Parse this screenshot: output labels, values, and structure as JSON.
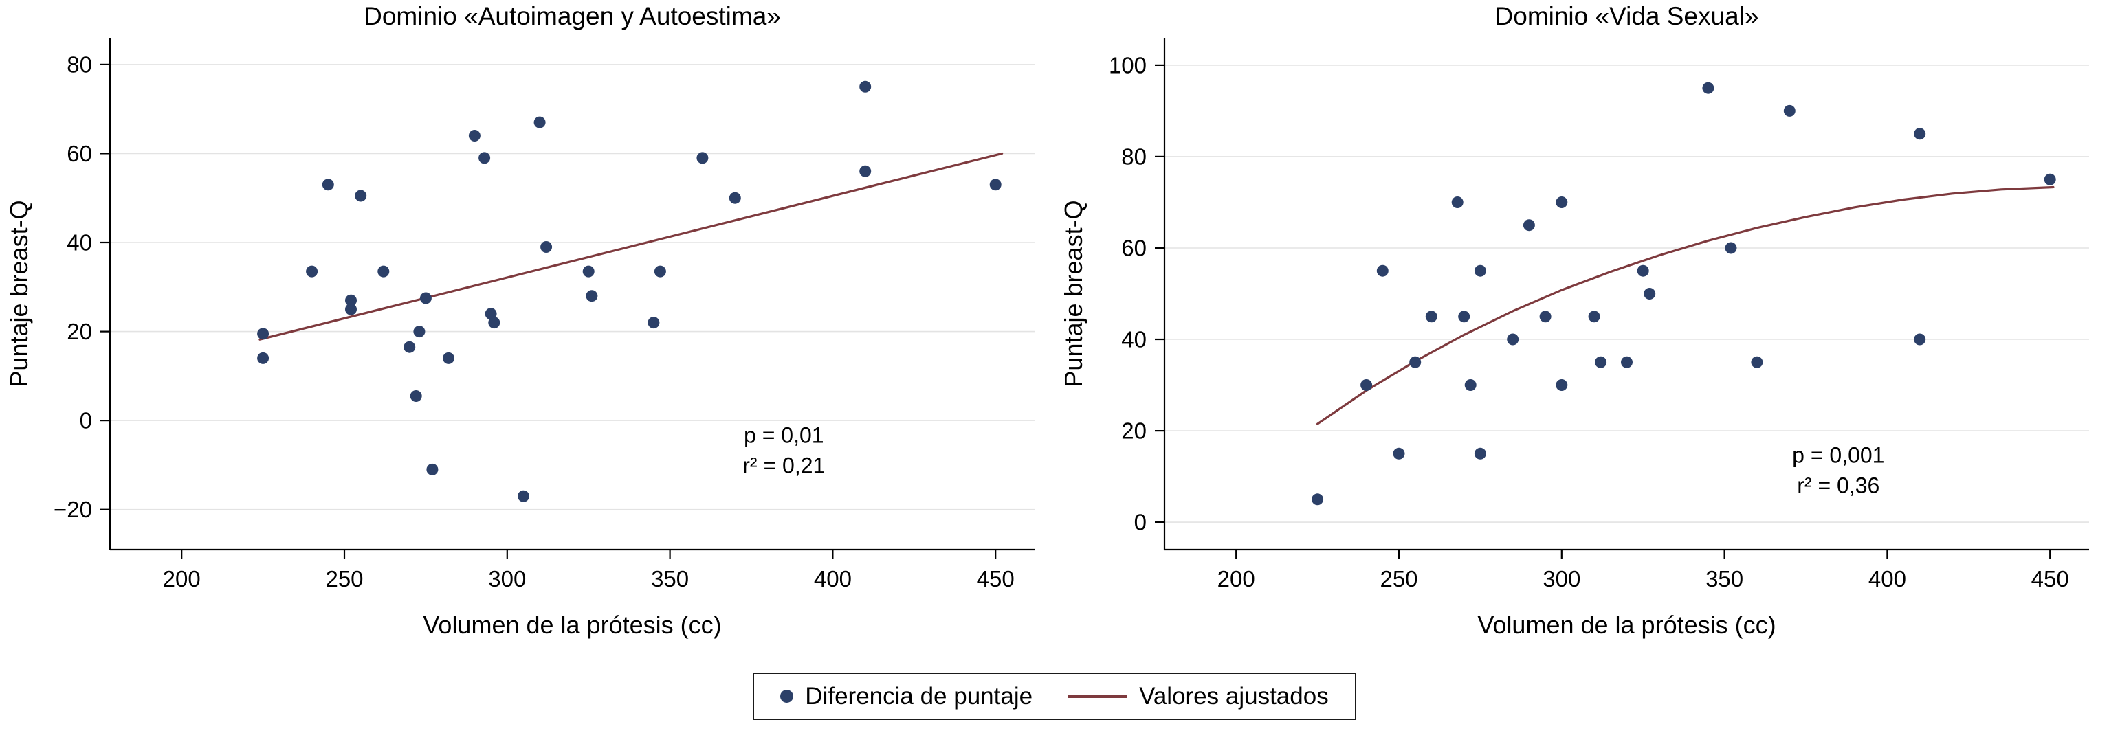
{
  "legend": {
    "marker_label": "Diferencia de puntaje",
    "line_label": "Valores ajustados"
  },
  "colors": {
    "marker": "#2c4068",
    "fit_line": "#7e3a3e",
    "grid": "#e3e3e3",
    "axis": "#000000",
    "text": "#000000",
    "background": "#ffffff"
  },
  "chart_data": [
    {
      "type": "scatter",
      "title": "Dominio «Autoimagen y Autoestima»",
      "xlabel": "Volumen de la prótesis (cc)",
      "ylabel": "Puntaje breast-Q",
      "xlim": [
        178,
        462
      ],
      "ylim": [
        -29,
        86
      ],
      "xticks": [
        200,
        250,
        300,
        350,
        400,
        450
      ],
      "xtick_labels": [
        "200",
        "250",
        "300",
        "350",
        "400",
        "450"
      ],
      "yticks": [
        -20,
        0,
        20,
        40,
        60,
        80
      ],
      "ytick_labels": [
        "−20",
        "0",
        "20",
        "40",
        "60",
        "80"
      ],
      "grid": "horizontal",
      "points": [
        [
          225,
          19.5
        ],
        [
          225,
          14
        ],
        [
          240,
          33.5
        ],
        [
          245,
          53
        ],
        [
          252,
          27
        ],
        [
          252,
          25
        ],
        [
          255,
          50.5
        ],
        [
          262,
          33.5
        ],
        [
          270,
          16.5
        ],
        [
          272,
          5.5
        ],
        [
          273,
          20
        ],
        [
          275,
          27.5
        ],
        [
          277,
          -11
        ],
        [
          282,
          14
        ],
        [
          290,
          64
        ],
        [
          293,
          59
        ],
        [
          295,
          24
        ],
        [
          296,
          22
        ],
        [
          305,
          -17
        ],
        [
          310,
          67
        ],
        [
          312,
          39
        ],
        [
          325,
          33.5
        ],
        [
          326,
          28
        ],
        [
          345,
          22
        ],
        [
          347,
          33.5
        ],
        [
          360,
          59
        ],
        [
          370,
          50
        ],
        [
          410,
          75
        ],
        [
          410,
          56
        ],
        [
          450,
          53
        ]
      ],
      "fit_line": [
        [
          224,
          18.2
        ],
        [
          452,
          60
        ]
      ],
      "annotation": {
        "x": 385,
        "y": -5,
        "lines": [
          "p = 0,01",
          "r² = 0,21"
        ]
      }
    },
    {
      "type": "scatter",
      "title": "Dominio «Vida Sexual»",
      "xlabel": "Volumen de la prótesis (cc)",
      "ylabel": "Puntaje breast-Q",
      "xlim": [
        178,
        462
      ],
      "ylim": [
        -6,
        106
      ],
      "xticks": [
        200,
        250,
        300,
        350,
        400,
        450
      ],
      "xtick_labels": [
        "200",
        "250",
        "300",
        "350",
        "400",
        "450"
      ],
      "yticks": [
        0,
        20,
        40,
        60,
        80,
        100
      ],
      "ytick_labels": [
        "0",
        "20",
        "40",
        "60",
        "80",
        "100"
      ],
      "grid": "horizontal",
      "points": [
        [
          225,
          5
        ],
        [
          240,
          30
        ],
        [
          245,
          55
        ],
        [
          250,
          15
        ],
        [
          255,
          35
        ],
        [
          260,
          45
        ],
        [
          268,
          70
        ],
        [
          270,
          45
        ],
        [
          272,
          30
        ],
        [
          275,
          55
        ],
        [
          275,
          15
        ],
        [
          285,
          40
        ],
        [
          290,
          65
        ],
        [
          295,
          45
        ],
        [
          300,
          70
        ],
        [
          300,
          30
        ],
        [
          310,
          45
        ],
        [
          312,
          35
        ],
        [
          320,
          35
        ],
        [
          325,
          55
        ],
        [
          327,
          50
        ],
        [
          345,
          95
        ],
        [
          352,
          60
        ],
        [
          360,
          35
        ],
        [
          370,
          90
        ],
        [
          410,
          85
        ],
        [
          410,
          40
        ],
        [
          450,
          75
        ]
      ],
      "fit_line": [
        [
          225,
          21.5
        ],
        [
          240,
          28.8
        ],
        [
          255,
          35.2
        ],
        [
          270,
          41
        ],
        [
          285,
          46.2
        ],
        [
          300,
          50.8
        ],
        [
          315,
          54.8
        ],
        [
          330,
          58.4
        ],
        [
          345,
          61.6
        ],
        [
          360,
          64.4
        ],
        [
          375,
          66.8
        ],
        [
          390,
          68.9
        ],
        [
          405,
          70.6
        ],
        [
          420,
          71.9
        ],
        [
          435,
          72.8
        ],
        [
          451,
          73.3
        ]
      ],
      "annotation": {
        "x": 385,
        "y": 13,
        "lines": [
          "p = 0,001",
          "r² = 0,36"
        ]
      }
    }
  ]
}
